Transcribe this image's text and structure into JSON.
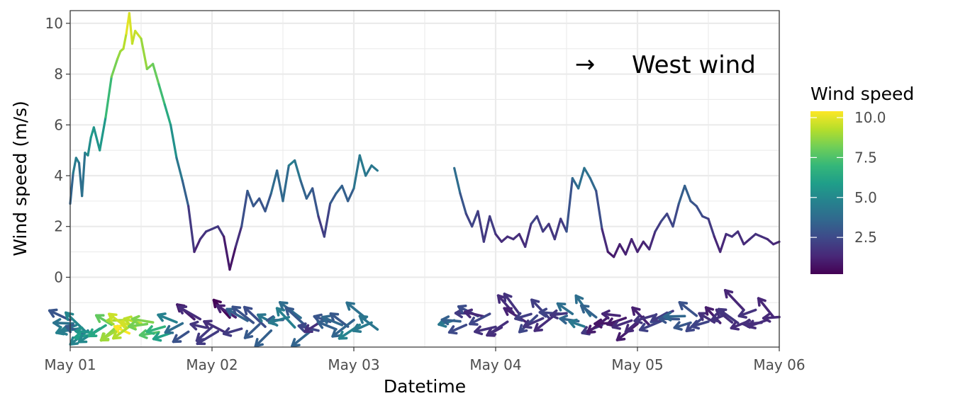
{
  "chart_data": {
    "type": "line",
    "title": "",
    "xlabel": "Datetime",
    "ylabel": "Wind speed (m/s)",
    "xlim": [
      "2023-05-01T00:00",
      "2023-05-06T00:00"
    ],
    "ylim": [
      -2.75,
      10.5
    ],
    "x_ticks": [
      "May 01",
      "May 02",
      "May 03",
      "May 04",
      "May 05",
      "May 06"
    ],
    "y_ticks": [
      0,
      2,
      4,
      6,
      8,
      10
    ],
    "y_tick_labels": [
      "0",
      "2",
      "4",
      "6",
      "8",
      "10"
    ],
    "grid": true,
    "annotation": {
      "arrow": "→",
      "text": "West wind"
    },
    "legend": {
      "title": "Wind speed",
      "position": "right",
      "range": [
        0.2,
        10.4
      ],
      "ticks": [
        2.5,
        5.0,
        7.5,
        10.0
      ],
      "tick_labels": [
        "2.5",
        "5.0",
        "7.5",
        "10.0"
      ],
      "colors": [
        "#440154",
        "#482878",
        "#3e4989",
        "#31688e",
        "#26828e",
        "#1f9e89",
        "#35b779",
        "#6ece58",
        "#b5de2b",
        "#fde725"
      ]
    },
    "series": [
      {
        "x": [
          "2023-05-01T00:00",
          "2023-05-01T00:30",
          "2023-05-01T01:00",
          "2023-05-01T01:30",
          "2023-05-01T02:00",
          "2023-05-01T02:30",
          "2023-05-01T03:00",
          "2023-05-01T03:30",
          "2023-05-01T04:00",
          "2023-05-01T05:00",
          "2023-05-01T06:00",
          "2023-05-01T07:00",
          "2023-05-01T08:00",
          "2023-05-01T08:30",
          "2023-05-01T09:00",
          "2023-05-01T09:30",
          "2023-05-01T10:00",
          "2023-05-01T10:30",
          "2023-05-01T11:00",
          "2023-05-01T12:00",
          "2023-05-01T13:00",
          "2023-05-01T14:00",
          "2023-05-01T15:00",
          "2023-05-01T16:00",
          "2023-05-01T17:00",
          "2023-05-01T18:00",
          "2023-05-01T19:00",
          "2023-05-01T20:00",
          "2023-05-01T21:00",
          "2023-05-01T22:00",
          "2023-05-01T23:00",
          "2023-05-02T00:00",
          "2023-05-02T01:00",
          "2023-05-02T02:00",
          "2023-05-02T03:00",
          "2023-05-02T04:00",
          "2023-05-02T05:00",
          "2023-05-02T06:00",
          "2023-05-02T07:00",
          "2023-05-02T08:00",
          "2023-05-02T09:00",
          "2023-05-02T10:00",
          "2023-05-02T11:00",
          "2023-05-02T12:00",
          "2023-05-02T13:00",
          "2023-05-02T14:00",
          "2023-05-02T15:00",
          "2023-05-02T16:00",
          "2023-05-02T17:00",
          "2023-05-02T18:00",
          "2023-05-02T19:00",
          "2023-05-02T20:00",
          "2023-05-02T21:00",
          "2023-05-02T22:00",
          "2023-05-02T23:00",
          "2023-05-03T00:00",
          "2023-05-03T01:00",
          "2023-05-03T02:00",
          "2023-05-03T03:00",
          "2023-05-03T04:00"
        ],
        "y": [
          2.9,
          4.1,
          4.7,
          4.5,
          3.2,
          4.9,
          4.8,
          5.5,
          5.9,
          5.0,
          6.3,
          7.9,
          8.6,
          8.9,
          9.0,
          9.6,
          10.4,
          9.2,
          9.7,
          9.4,
          8.2,
          8.4,
          7.6,
          6.8,
          6.0,
          4.7,
          3.8,
          2.8,
          1.0,
          1.5,
          1.8,
          1.9,
          2.0,
          1.6,
          0.3,
          1.2,
          2.0,
          3.4,
          2.8,
          3.1,
          2.6,
          3.3,
          4.2,
          3.0,
          4.4,
          4.6,
          3.8,
          3.1,
          3.5,
          2.4,
          1.6,
          2.9,
          3.3,
          3.6,
          3.0,
          3.5,
          4.8,
          4.0,
          4.4,
          4.2
        ]
      },
      {
        "x": [
          "2023-05-03T17:00",
          "2023-05-03T18:00",
          "2023-05-03T19:00",
          "2023-05-03T20:00",
          "2023-05-03T21:00",
          "2023-05-03T22:00",
          "2023-05-03T23:00",
          "2023-05-04T00:00",
          "2023-05-04T01:00",
          "2023-05-04T02:00",
          "2023-05-04T03:00",
          "2023-05-04T04:00",
          "2023-05-04T05:00",
          "2023-05-04T06:00",
          "2023-05-04T07:00",
          "2023-05-04T08:00",
          "2023-05-04T09:00",
          "2023-05-04T10:00",
          "2023-05-04T11:00",
          "2023-05-04T12:00",
          "2023-05-04T13:00",
          "2023-05-04T14:00",
          "2023-05-04T15:00",
          "2023-05-04T16:00",
          "2023-05-04T17:00",
          "2023-05-04T18:00",
          "2023-05-04T19:00",
          "2023-05-04T20:00",
          "2023-05-04T21:00",
          "2023-05-04T22:00",
          "2023-05-04T23:00",
          "2023-05-05T00:00",
          "2023-05-05T01:00",
          "2023-05-05T02:00",
          "2023-05-05T03:00",
          "2023-05-05T04:00",
          "2023-05-05T05:00",
          "2023-05-05T06:00",
          "2023-05-05T07:00",
          "2023-05-05T08:00",
          "2023-05-05T09:00",
          "2023-05-05T10:00",
          "2023-05-05T11:00",
          "2023-05-05T12:00",
          "2023-05-05T13:00",
          "2023-05-05T14:00",
          "2023-05-05T15:00",
          "2023-05-05T16:00",
          "2023-05-05T17:00",
          "2023-05-05T18:00",
          "2023-05-05T19:00",
          "2023-05-05T20:00",
          "2023-05-05T21:00",
          "2023-05-05T22:00",
          "2023-05-05T23:00",
          "2023-05-06T00:00"
        ],
        "y": [
          4.3,
          3.3,
          2.5,
          2.0,
          2.6,
          1.4,
          2.4,
          1.7,
          1.4,
          1.6,
          1.5,
          1.7,
          1.2,
          2.1,
          2.4,
          1.8,
          2.1,
          1.5,
          2.3,
          1.8,
          3.9,
          3.5,
          4.3,
          3.9,
          3.4,
          1.9,
          1.0,
          0.8,
          1.3,
          0.9,
          1.5,
          1.0,
          1.4,
          1.1,
          1.8,
          2.2,
          2.5,
          2.0,
          2.9,
          3.6,
          3.0,
          2.8,
          2.4,
          2.3,
          1.6,
          1.0,
          1.7,
          1.6,
          1.8,
          1.3,
          1.5,
          1.7,
          1.6,
          1.5,
          1.3,
          1.4
        ]
      }
    ]
  }
}
